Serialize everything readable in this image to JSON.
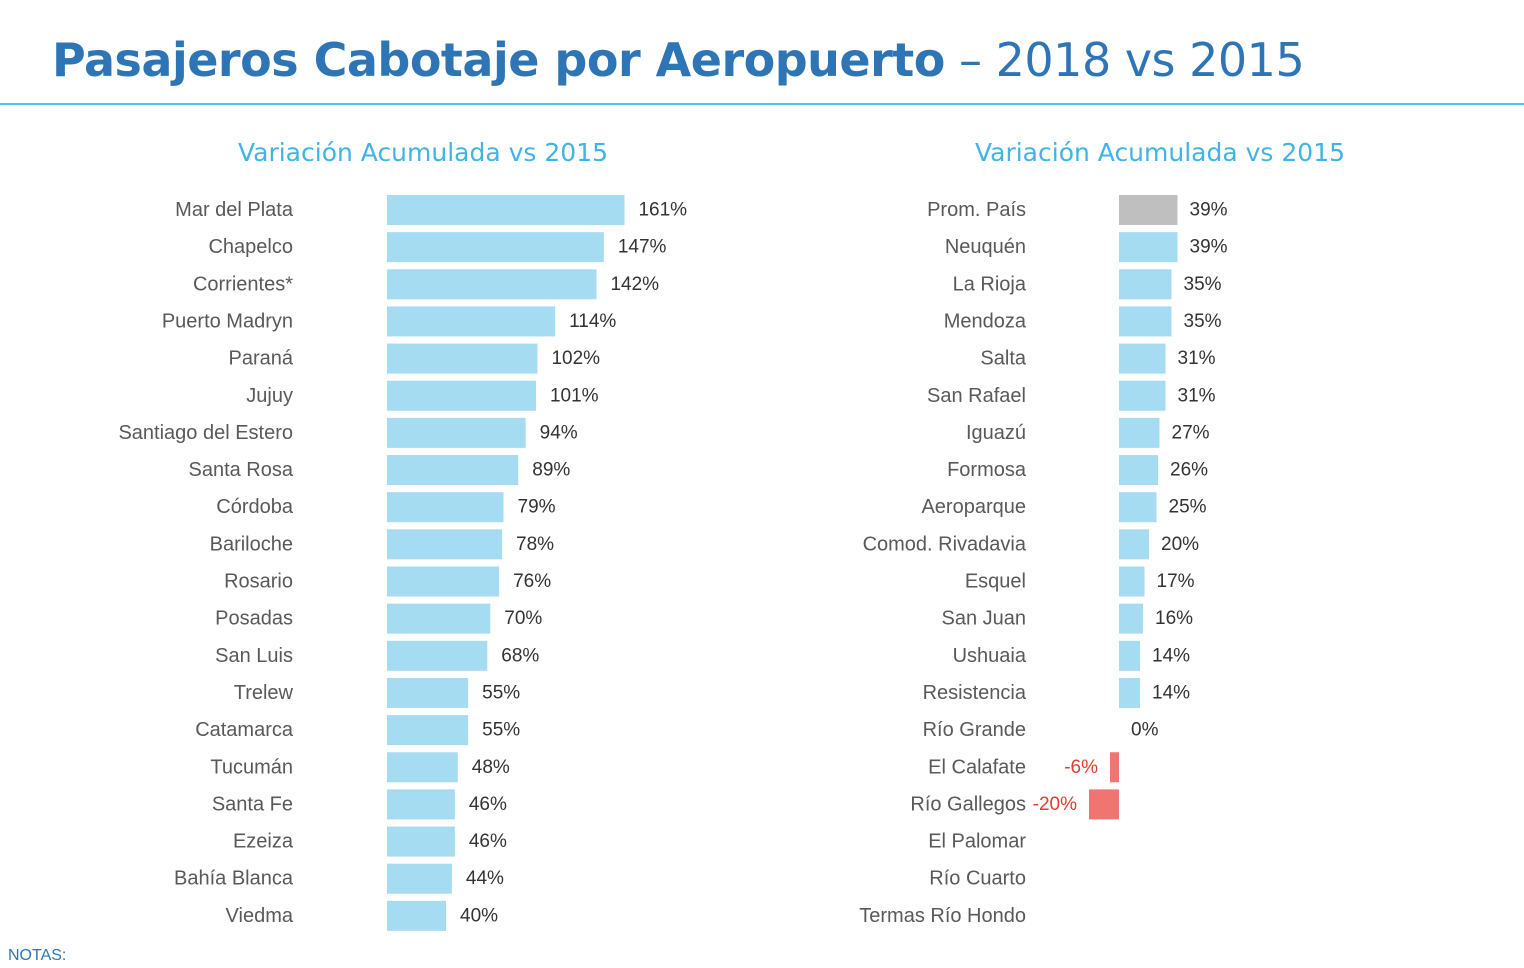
{
  "title": {
    "bold": "Pasajeros Cabotaje por Aeropuerto",
    "light": " – 2018 vs 2015"
  },
  "notes": "NOTAS:",
  "colors": {
    "bar": "#a6dcf2",
    "average": "#bfbfbf",
    "negative": "#f07470",
    "title": "#2e75b6",
    "accent": "#3fb4e5"
  },
  "chart_data": [
    {
      "type": "bar",
      "orientation": "horizontal",
      "title": "Variación Acumulada vs 2015",
      "unit": "%",
      "categories": [
        "Mar del Plata",
        "Chapelco",
        "Corrientes*",
        "Puerto Madryn",
        "Paraná",
        "Jujuy",
        "Santiago del Estero",
        "Santa Rosa",
        "Córdoba",
        "Bariloche",
        "Rosario",
        "Posadas",
        "San Luis",
        "Trelew",
        "Catamarca",
        "Tucumán",
        "Santa Fe",
        "Ezeiza",
        "Bahía Blanca",
        "Viedma"
      ],
      "values": [
        161,
        147,
        142,
        114,
        102,
        101,
        94,
        89,
        79,
        78,
        76,
        70,
        68,
        55,
        55,
        48,
        46,
        46,
        44,
        40
      ],
      "labels": [
        "161%",
        "147%",
        "142%",
        "114%",
        "102%",
        "101%",
        "94%",
        "89%",
        "79%",
        "78%",
        "76%",
        "70%",
        "68%",
        "55%",
        "55%",
        "48%",
        "46%",
        "46%",
        "44%",
        "40%"
      ],
      "highlight": []
    },
    {
      "type": "bar",
      "orientation": "horizontal",
      "title": "Variación Acumulada vs 2015",
      "unit": "%",
      "categories": [
        "Prom. País",
        "Neuquén",
        "La Rioja",
        "Mendoza",
        "Salta",
        "San Rafael",
        "Iguazú",
        "Formosa",
        "Aeroparque",
        "Comod. Rivadavia",
        "Esquel",
        "San Juan",
        "Ushuaia",
        "Resistencia",
        "Río Grande",
        "El Calafate",
        "Río Gallegos",
        "El Palomar",
        "Río Cuarto",
        "Termas Río Hondo"
      ],
      "values": [
        39,
        39,
        35,
        35,
        31,
        31,
        27,
        26,
        25,
        20,
        17,
        16,
        14,
        14,
        0,
        -6,
        -20,
        null,
        null,
        null
      ],
      "labels": [
        "39%",
        "39%",
        "35%",
        "35%",
        "31%",
        "31%",
        "27%",
        "26%",
        "25%",
        "20%",
        "17%",
        "16%",
        "14%",
        "14%",
        "0%",
        "-6%",
        "-20%",
        "",
        "",
        ""
      ],
      "highlight": [
        "Prom. País"
      ]
    }
  ]
}
